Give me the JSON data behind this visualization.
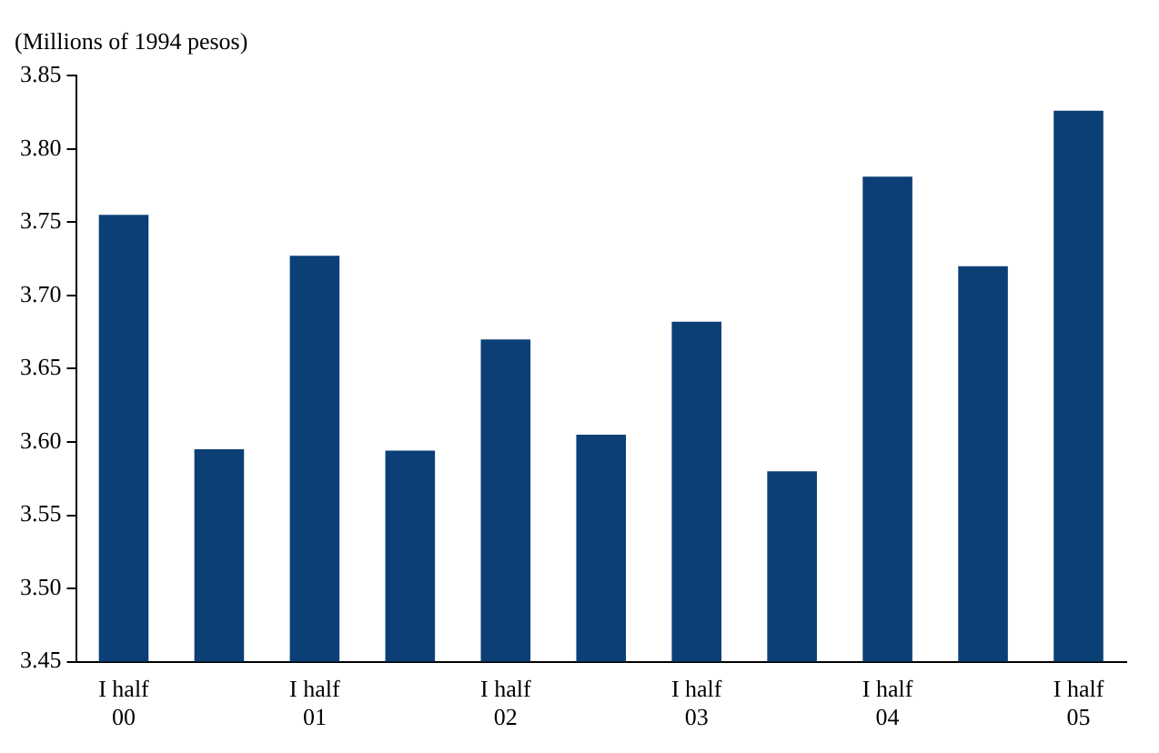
{
  "chart_data": {
    "type": "bar",
    "ylabel": "(Millions of 1994 pesos)",
    "categories": [
      "I half\n00",
      null,
      "I half\n01",
      null,
      "I half\n02",
      null,
      "I half\n03",
      null,
      "I half\n04",
      null,
      "I half\n05"
    ],
    "values": [
      3.755,
      3.595,
      3.727,
      3.594,
      3.67,
      3.605,
      3.682,
      3.58,
      3.781,
      3.72,
      3.826
    ],
    "color": "#0b3f76",
    "ylim": [
      3.45,
      3.85
    ],
    "yticks": [
      3.45,
      {
        "value": 3.5,
        "label": "3.50"
      },
      3.55,
      {
        "value": 3.6,
        "label": "3.60"
      },
      3.65,
      {
        "value": 3.7,
        "label": "3.70"
      },
      3.75,
      {
        "value": 3.8,
        "label": "3.80"
      },
      3.85
    ],
    "grid": false,
    "legend": false
  }
}
